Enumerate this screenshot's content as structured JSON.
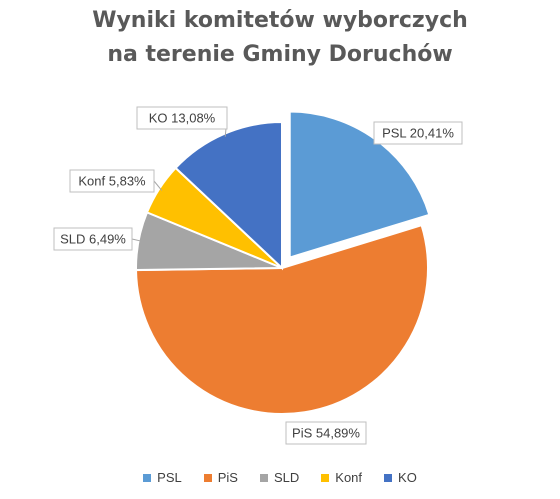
{
  "chart_data": {
    "type": "pie",
    "title_lines": [
      "Wyniki komitetów wyborczych",
      "na terenie Gminy Doruchów"
    ],
    "slices": [
      {
        "name": "PSL",
        "value": 20.41,
        "label": "PSL 20,41%",
        "color": "#5b9bd5"
      },
      {
        "name": "PiS",
        "value": 54.89,
        "label": "PiS 54,89%",
        "color": "#ed7d31"
      },
      {
        "name": "SLD",
        "value": 6.49,
        "label": "SLD 6,49%",
        "color": "#a5a5a5"
      },
      {
        "name": "Konf",
        "value": 5.83,
        "label": "Konf 5,83%",
        "color": "#ffc000"
      },
      {
        "name": "KO",
        "value": 13.08,
        "label": "KO  13,08%",
        "color": "#4472c4"
      }
    ],
    "legend": [
      "PSL",
      "PiS",
      "SLD",
      "Konf",
      "KO"
    ],
    "legend_position": "bottom"
  }
}
